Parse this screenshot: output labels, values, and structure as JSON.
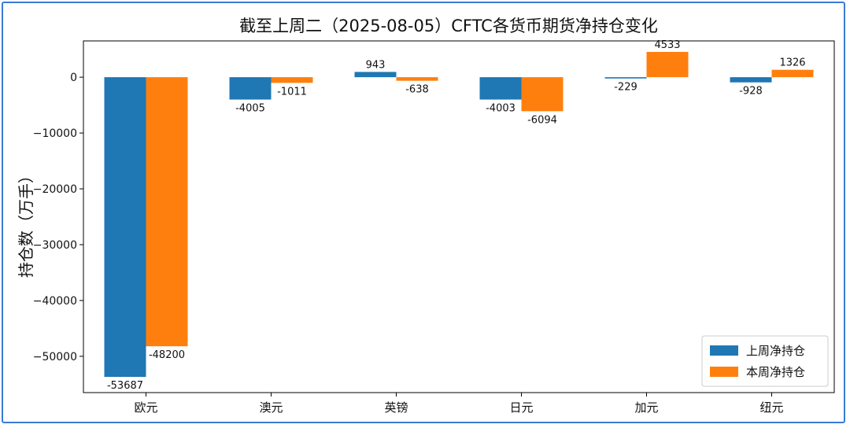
{
  "chart_data": {
    "type": "bar",
    "title": "截至上周二（2025-08-05）CFTC各货币期货净持仓变化",
    "ylabel": "持仓数（万手）",
    "xlabel": "",
    "categories": [
      "欧元",
      "澳元",
      "英镑",
      "日元",
      "加元",
      "纽元"
    ],
    "series": [
      {
        "name": "上周净持仓",
        "color": "#1f77b4",
        "values": [
          -53687,
          -4005,
          943,
          -4003,
          -229,
          -928
        ],
        "labels": [
          "-53687",
          "-4005",
          "943",
          "-4003",
          "-229",
          "-928"
        ]
      },
      {
        "name": "本周净持仓",
        "color": "#ff7f0e",
        "values": [
          -48200,
          -1011,
          -638,
          -6094,
          4533,
          1326
        ],
        "labels": [
          "-48200",
          "-1011",
          "-638",
          "-6094",
          "4533",
          "1326"
        ]
      }
    ],
    "ylim": [
      -56500,
      6500
    ],
    "yticks": [
      0,
      -10000,
      -20000,
      -30000,
      -40000,
      -50000
    ],
    "ytick_labels": [
      "0",
      "−10000",
      "−20000",
      "−30000",
      "−40000",
      "−50000"
    ],
    "grid": false,
    "legend_position": "lower-right"
  }
}
